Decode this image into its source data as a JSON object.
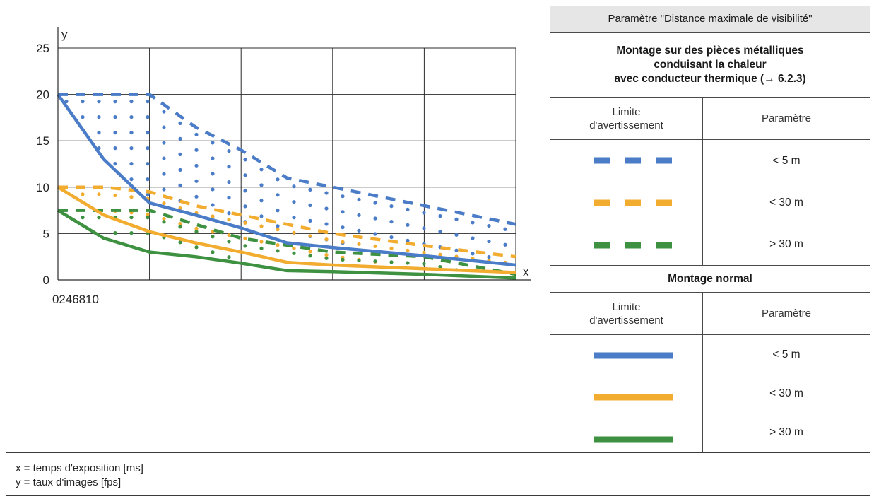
{
  "chart_data": {
    "type": "line",
    "xlabel": "x",
    "ylabel": "y",
    "x_tick_labels": [
      "0",
      "2",
      "4",
      "6",
      "8",
      "10"
    ],
    "y_ticks": [
      0,
      5,
      10,
      15,
      20,
      25
    ],
    "xlim": [
      0,
      10
    ],
    "ylim": [
      0,
      25
    ],
    "grid": true,
    "series": [
      {
        "key": "blue_dashed",
        "color": "#4a7cc7",
        "style": "dashed",
        "points": [
          [
            0,
            20
          ],
          [
            1,
            20
          ],
          [
            2,
            20
          ],
          [
            3,
            16.5
          ],
          [
            4,
            14
          ],
          [
            5,
            11
          ],
          [
            6,
            10
          ],
          [
            8,
            8
          ],
          [
            10,
            6
          ]
        ]
      },
      {
        "key": "orange_dashed",
        "color": "#f2ac2f",
        "style": "dashed",
        "points": [
          [
            0,
            10
          ],
          [
            1,
            10
          ],
          [
            2,
            9.5
          ],
          [
            3,
            8
          ],
          [
            4,
            7
          ],
          [
            5,
            6
          ],
          [
            6,
            5
          ],
          [
            8,
            3.7
          ],
          [
            10,
            2.5
          ]
        ]
      },
      {
        "key": "green_dashed",
        "color": "#3d9140",
        "style": "dashed",
        "points": [
          [
            0,
            7.5
          ],
          [
            1,
            7.5
          ],
          [
            2,
            7.5
          ],
          [
            4,
            4.5
          ],
          [
            6,
            3
          ],
          [
            8,
            2.5
          ],
          [
            10,
            0.6
          ]
        ]
      },
      {
        "key": "blue_solid",
        "color": "#4a7cc7",
        "style": "solid",
        "points": [
          [
            0,
            20
          ],
          [
            1,
            13
          ],
          [
            2,
            8.3
          ],
          [
            3,
            7
          ],
          [
            4,
            5.6
          ],
          [
            5,
            4
          ],
          [
            6,
            3.5
          ],
          [
            8,
            2.6
          ],
          [
            10,
            1.6
          ]
        ]
      },
      {
        "key": "orange_solid",
        "color": "#f2ac2f",
        "style": "solid",
        "points": [
          [
            0,
            10
          ],
          [
            1,
            7
          ],
          [
            2,
            5.2
          ],
          [
            3,
            4
          ],
          [
            4,
            3
          ],
          [
            5,
            1.9
          ],
          [
            6,
            1.6
          ],
          [
            8,
            1.2
          ],
          [
            10,
            0.8
          ]
        ]
      },
      {
        "key": "green_solid",
        "color": "#3d9140",
        "style": "solid",
        "points": [
          [
            0,
            7.5
          ],
          [
            1,
            4.5
          ],
          [
            2,
            3
          ],
          [
            3,
            2.5
          ],
          [
            4,
            1.8
          ],
          [
            5,
            1
          ],
          [
            6,
            0.9
          ],
          [
            8,
            0.6
          ],
          [
            10,
            0.2
          ]
        ]
      }
    ],
    "dotted_regions": [
      {
        "color": "#4a7cc7",
        "upper": "blue_dashed",
        "lower": "blue_solid"
      },
      {
        "color": "#f2ac2f",
        "upper": "orange_dashed",
        "lower": "orange_solid"
      },
      {
        "color": "#3d9140",
        "upper": "green_dashed",
        "lower": "green_solid"
      }
    ]
  },
  "legend": {
    "title": "Paramètre \"Distance maximale de visibilité\"",
    "section1_title_lines": [
      "Montage sur des pièces métalliques",
      "conduisant la chaleur",
      "avec conducteur thermique (→ 6.2.3)"
    ],
    "section2_title": "Montage normal",
    "col_limit_lines": [
      "Limite",
      "d'avertissement"
    ],
    "col_param": "Paramètre",
    "section1_rows": [
      {
        "color": "#4a7cc7",
        "style": "dashed",
        "value": "< 5 m"
      },
      {
        "color": "#f2ac2f",
        "style": "dashed",
        "value": "< 30 m"
      },
      {
        "color": "#3d9140",
        "style": "dashed",
        "value": "> 30 m"
      }
    ],
    "section2_rows": [
      {
        "color": "#4a7cc7",
        "style": "solid",
        "value": "< 5 m"
      },
      {
        "color": "#f2ac2f",
        "style": "solid",
        "value": "< 30 m"
      },
      {
        "color": "#3d9140",
        "style": "solid",
        "value": "> 30 m"
      }
    ]
  },
  "footer": {
    "x_definition": "x = temps d'exposition [ms]",
    "y_definition": "y = taux d'images [fps]"
  }
}
